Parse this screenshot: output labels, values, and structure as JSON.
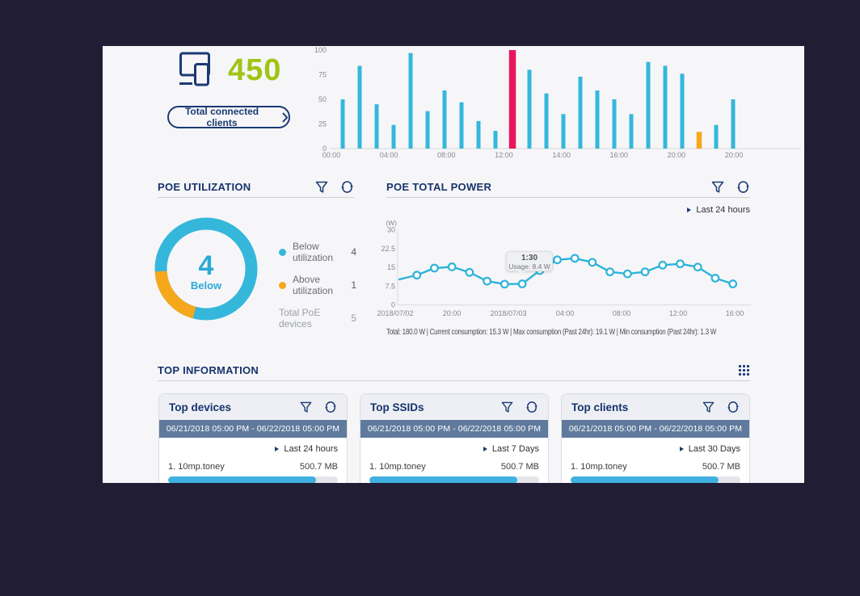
{
  "colors": {
    "background": "#201d35",
    "panel": "#f6f6f8",
    "navy": "#1b3a73",
    "green": "#a1c414",
    "cyan": "#35b7dc",
    "pink": "#e8175d",
    "orange": "#f5a81c",
    "slate_banner": "#5f7a9c",
    "progress_fill": "#3fb0e0"
  },
  "clients_widget": {
    "count": "450",
    "button_label": "Total connected clients"
  },
  "chart_data": [
    {
      "id": "connected-clients-bars",
      "type": "bar",
      "categories": [
        "00:00",
        "04:00",
        "08:00",
        "12:00",
        "14:00",
        "16:00",
        "20:00",
        "20:00"
      ],
      "values": [
        50,
        84,
        45,
        24,
        97,
        38,
        59,
        47,
        28,
        18,
        100,
        80,
        56,
        35,
        73,
        59,
        50,
        35,
        88,
        84,
        76,
        17,
        24,
        50
      ],
      "ylim": [
        0,
        100
      ],
      "y_ticks": [
        100,
        75,
        50,
        25,
        0
      ],
      "bar_color": "#35b7dc",
      "highlight": {
        "10": "#e8175d",
        "21": "#f5a81c"
      },
      "grid": "baseline-only",
      "legend_position": "none"
    },
    {
      "id": "poe-utilization-donut",
      "type": "pie",
      "slices": [
        {
          "label": "Below utilization",
          "value": 4,
          "color": "#35b7dc"
        },
        {
          "label": "Above utilization",
          "value": 1,
          "color": "#f5a81c"
        }
      ],
      "total_label": "Total PoE devices",
      "total_value": 5,
      "center_value": "4",
      "center_label": "Below"
    },
    {
      "id": "poe-total-power-line",
      "type": "line",
      "ylabel": "(W)",
      "ylim": [
        0,
        30
      ],
      "y_ticks": [
        30,
        22.5,
        15,
        7.5,
        0
      ],
      "x_ticks": [
        "2018/07/02",
        "20:00",
        "2018/07/03",
        "04:00",
        "08:00",
        "12:00",
        "16:00"
      ],
      "values": [
        10.2,
        11.9,
        14.7,
        15.2,
        13.0,
        9.5,
        8.3,
        8.4,
        13.7,
        18.0,
        18.6,
        17.0,
        13.2,
        12.4,
        13.2,
        15.9,
        16.4,
        15.1,
        10.7,
        8.4
      ],
      "line_color": "#2eb3d9",
      "grid": "axis-only",
      "legend_position": "none",
      "tooltip": {
        "title": "1:30",
        "text": "Usage: 8.4 W",
        "point_index": 7
      }
    }
  ],
  "poe_utilization": {
    "title": "POE UTILIZATION",
    "center_value": "4",
    "center_label": "Below",
    "legend": [
      {
        "label": "Below utilization",
        "value": "4"
      },
      {
        "label": "Above utilization",
        "value": "1"
      },
      {
        "label": "Total PoE devices",
        "value": "5"
      }
    ]
  },
  "poe_total_power": {
    "title": "POE TOTAL POWER",
    "range_label": "Last 24 hours",
    "footer": "Total: 180.0 W | Current consumption: 15.3 W | Max consumption (Past 24hr): 19.1 W | Min consumption (Past 24hr): 1.3 W"
  },
  "top_information": {
    "title": "TOP INFORMATION",
    "cards": [
      {
        "title": "Top devices",
        "date_range": "06/21/2018 05:00 PM - 06/22/2018 05:00 PM",
        "range_label": "Last 24 hours",
        "entries": [
          {
            "rank": "1.",
            "name": "10mp.toney",
            "value": "500.7 MB",
            "progress_pct": 87
          }
        ]
      },
      {
        "title": "Top SSIDs",
        "date_range": "06/21/2018 05:00 PM - 06/22/2018 05:00 PM",
        "range_label": "Last 7 Days",
        "entries": [
          {
            "rank": "1.",
            "name": "10mp.toney",
            "value": "500.7 MB",
            "progress_pct": 87
          }
        ]
      },
      {
        "title": "Top clients",
        "date_range": "06/21/2018 05:00 PM - 06/22/2018 05:00 PM",
        "range_label": "Last 30 Days",
        "entries": [
          {
            "rank": "1.",
            "name": "10mp.toney",
            "value": "500.7 MB",
            "progress_pct": 87
          }
        ]
      }
    ]
  }
}
